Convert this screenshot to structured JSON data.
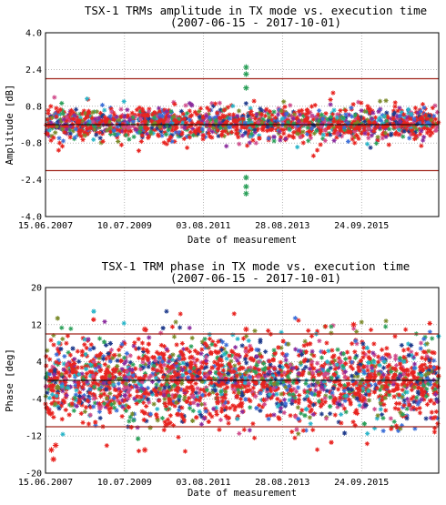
{
  "chart_data": [
    {
      "type": "scatter",
      "title": "TSX-1 TRMs amplitude in TX mode vs. execution time",
      "subtitle": "(2007-06-15 - 2017-10-01)",
      "xlabel": "Date of measurement",
      "ylabel": "Amplitude [dB]",
      "xlim": [
        "2007-06-15",
        "2017-10-01"
      ],
      "x_ticks": [
        "15.06.2007",
        "10.07.2009",
        "03.08.2011",
        "28.08.2013",
        "24.09.2015"
      ],
      "ylim": [
        -4.0,
        4.0
      ],
      "y_ticks": [
        "-4.0",
        "-2.4",
        "-0.8",
        "0.8",
        "2.4",
        "4.0"
      ],
      "y_tick_values": [
        -4.0,
        -2.4,
        -0.8,
        0.8,
        2.4,
        4.0
      ],
      "limit_lines": [
        2.0,
        -2.0
      ],
      "reference_line": 0.0,
      "grid": true,
      "series_colors": [
        "#e8231f",
        "#1f3b8c",
        "#2ca05a",
        "#8a2a9c",
        "#27b4c8",
        "#7a8a2a",
        "#d04a8a",
        "#3a6ed8"
      ],
      "limit_color": "#a0251b",
      "series": [
        {
          "name": "",
          "center": 0.05,
          "spread": 0.35
        }
      ],
      "outliers": [
        {
          "x": "2012-09-15",
          "y": 2.5
        },
        {
          "x": "2012-09-15",
          "y": 2.2
        },
        {
          "x": "2012-09-15",
          "y": 1.6
        },
        {
          "x": "2012-09-15",
          "y": -2.3
        },
        {
          "x": "2012-09-15",
          "y": -2.7
        },
        {
          "x": "2012-09-15",
          "y": -3.0
        }
      ]
    },
    {
      "type": "scatter",
      "title": "TSX-1 TRM phase in TX mode vs. execution time",
      "subtitle": "(2007-06-15 - 2017-10-01)",
      "xlabel": "Date of measurement",
      "ylabel": "Phase [deg]",
      "xlim": [
        "2007-06-15",
        "2017-10-01"
      ],
      "x_ticks": [
        "15.06.2007",
        "10.07.2009",
        "03.08.2011",
        "28.08.2013",
        "24.09.2015"
      ],
      "ylim": [
        -20,
        20
      ],
      "y_ticks": [
        "-20",
        "-12",
        "-4",
        "4",
        "12",
        "20"
      ],
      "y_tick_values": [
        -20,
        -12,
        -4,
        4,
        12,
        20
      ],
      "limit_lines": [
        10,
        -10
      ],
      "reference_line": 0,
      "grid": true,
      "series_colors": [
        "#e8231f",
        "#1f3b8c",
        "#2ca05a",
        "#8a2a9c",
        "#27b4c8",
        "#7a8a2a",
        "#d04a8a",
        "#3a6ed8"
      ],
      "limit_color": "#a0251b",
      "series": [
        {
          "name": "",
          "center": 0.0,
          "spread": 4.5
        }
      ],
      "outliers": [
        {
          "x": "2007-08-10",
          "y": -15
        },
        {
          "x": "2007-08-30",
          "y": -17
        },
        {
          "x": "2007-09-20",
          "y": -14
        },
        {
          "x": "2010-01-20",
          "y": -15
        },
        {
          "x": "2010-01-20",
          "y": 11
        },
        {
          "x": "2012-09-15",
          "y": 11
        },
        {
          "x": "2015-07-10",
          "y": 12
        }
      ]
    }
  ]
}
